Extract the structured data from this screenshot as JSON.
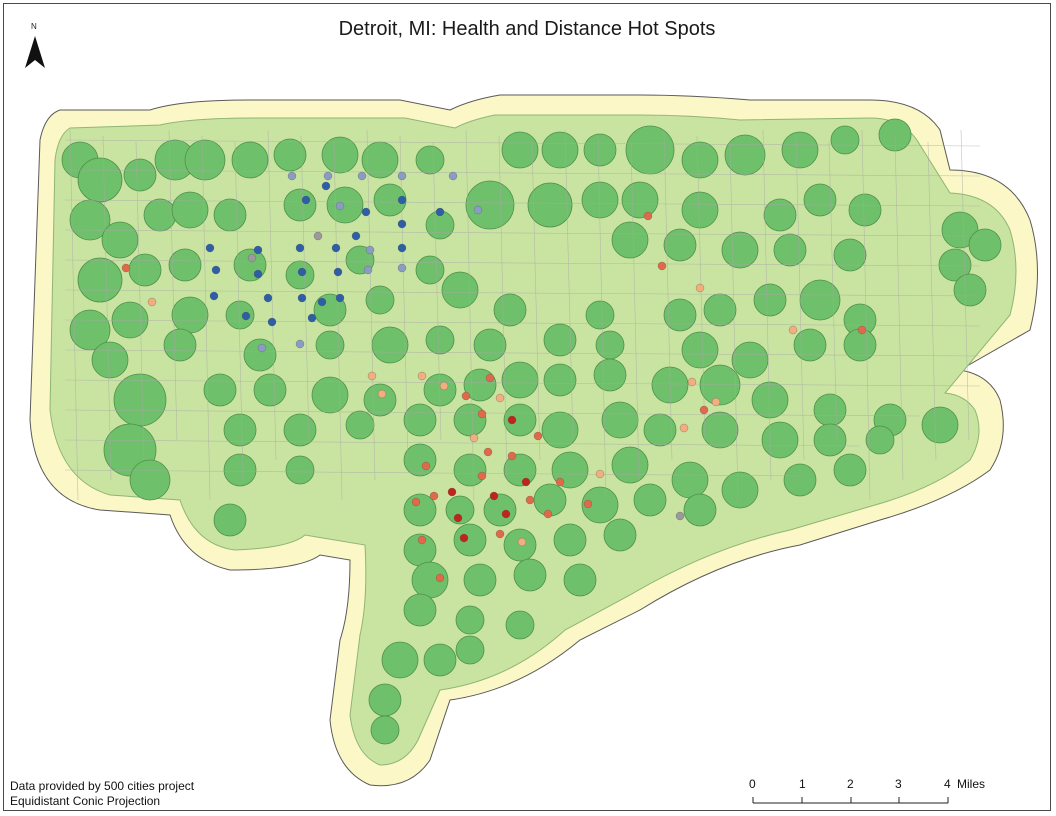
{
  "map": {
    "title": "Detroit, MI: Health and Distance Hot Spots",
    "north_label": "N",
    "colors": {
      "outer_buffer": "#fbf7c6",
      "middle_buffer": "#c9e4a1",
      "inner_buffer": "#6fc06b",
      "outline": "#5a5a5a",
      "tract_lines": "#a8a8a8",
      "hot_high": "#c0241c",
      "hot_mid": "#e06a48",
      "hot_low": "#f2ae7c",
      "cold_high": "#2e5ea6",
      "cold_low": "#8a9cc4",
      "neutral": "#9a9a9a"
    }
  },
  "credits": {
    "line1": "Data provided by 500 cities project",
    "line2": "Equidistant Conic Projection"
  },
  "scale": {
    "ticks": [
      "0",
      "1",
      "2",
      "3",
      "4"
    ],
    "unit": "Miles"
  }
}
